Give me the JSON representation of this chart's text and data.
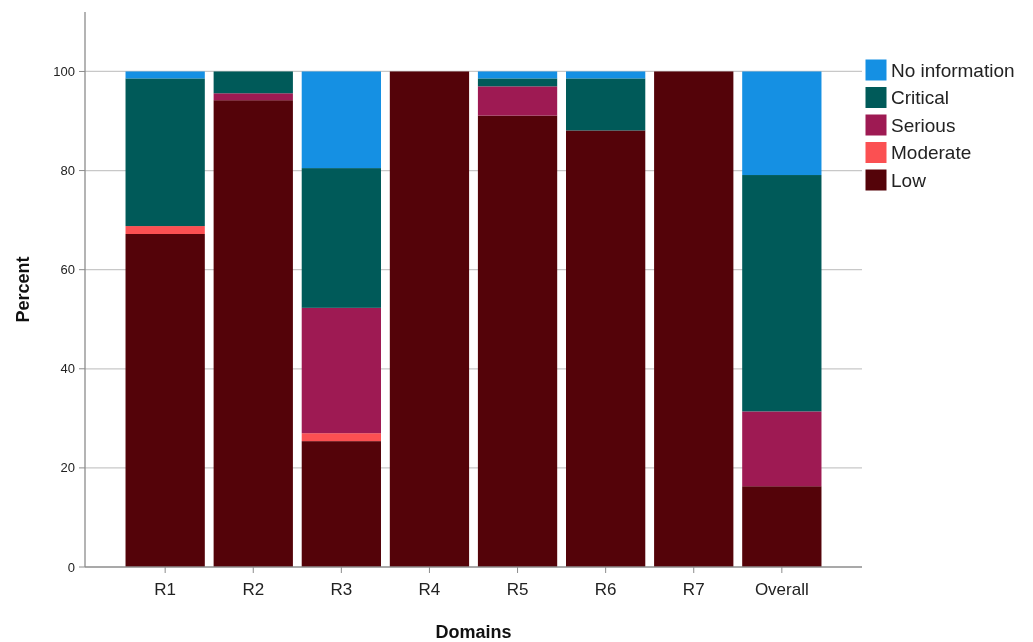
{
  "chart_data": {
    "type": "bar",
    "stacked": true,
    "xlabel": "Domains",
    "ylabel": "Percent",
    "categories": [
      "R1",
      "R2",
      "R3",
      "R4",
      "R5",
      "R6",
      "R7",
      "Overall"
    ],
    "series": [
      {
        "name": "Low",
        "color": "#540309",
        "values": [
          67.2,
          94.2,
          25.4,
          100,
          91.1,
          88.1,
          100,
          16.3
        ]
      },
      {
        "name": "Moderate",
        "color": "#fb5052",
        "values": [
          1.6,
          0,
          1.6,
          0,
          0,
          0,
          0,
          0
        ]
      },
      {
        "name": "Serious",
        "color": "#9e1a53",
        "values": [
          0,
          1.4,
          25.3,
          0,
          5.9,
          0,
          0,
          15.1
        ]
      },
      {
        "name": "Critical",
        "color": "#005a59",
        "values": [
          29.8,
          4.4,
          28.2,
          0,
          1.6,
          10.5,
          0,
          47.7
        ]
      },
      {
        "name": "No information",
        "color": "#1590e3",
        "values": [
          1.4,
          0,
          19.5,
          0,
          1.4,
          1.4,
          0,
          20.9
        ]
      }
    ],
    "ylim": [
      0,
      112
    ],
    "yticks": [
      0,
      20,
      40,
      60,
      80,
      100
    ],
    "grid": "y",
    "legend": "top right"
  }
}
